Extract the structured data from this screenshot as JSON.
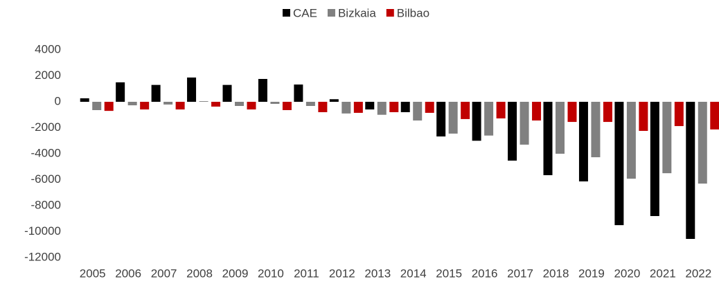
{
  "chart_data": {
    "type": "bar",
    "categories": [
      "2005",
      "2006",
      "2007",
      "2008",
      "2009",
      "2010",
      "2011",
      "2012",
      "2013",
      "2014",
      "2015",
      "2016",
      "2017",
      "2018",
      "2019",
      "2020",
      "2021",
      "2022"
    ],
    "series": [
      {
        "name": "CAE",
        "color": "#000000",
        "values": [
          270,
          1500,
          1300,
          1870,
          1300,
          1760,
          1330,
          200,
          -590,
          -800,
          -2670,
          -3000,
          -4530,
          -5650,
          -6130,
          -9500,
          -8800,
          -10560
        ]
      },
      {
        "name": "Bizkaia",
        "color": "#808080",
        "values": [
          -640,
          -270,
          -210,
          50,
          -320,
          -160,
          -320,
          -900,
          -1000,
          -1440,
          -2450,
          -2600,
          -3300,
          -4000,
          -4270,
          -5920,
          -5500,
          -6300
        ]
      },
      {
        "name": "Bilbao",
        "color": "#c00000",
        "values": [
          -700,
          -590,
          -590,
          -370,
          -590,
          -640,
          -800,
          -850,
          -800,
          -850,
          -1330,
          -1280,
          -1440,
          -1550,
          -1550,
          -2240,
          -1870,
          -2130
        ]
      }
    ],
    "ylim": [
      -12000,
      4000
    ],
    "yticks": [
      -12000,
      -10000,
      -8000,
      -6000,
      -4000,
      -2000,
      0,
      2000,
      4000
    ],
    "grid": false,
    "legend": "top"
  }
}
